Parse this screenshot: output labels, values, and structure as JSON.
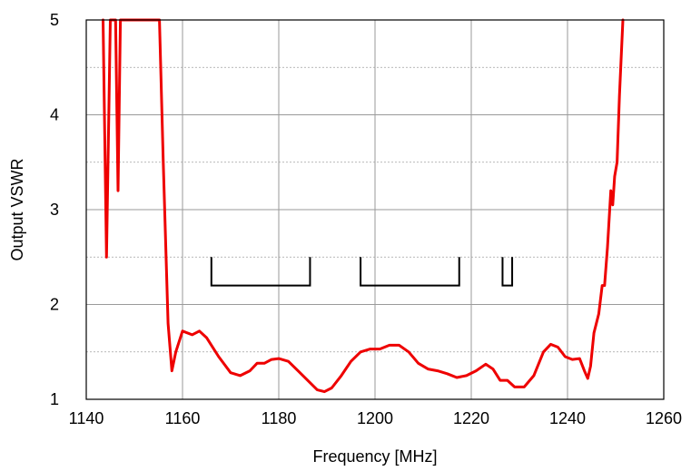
{
  "chart_data": {
    "type": "line",
    "title": "",
    "xlabel": "Frequency [MHz]",
    "ylabel": "Output VSWR",
    "xlim": [
      1140,
      1260
    ],
    "ylim": [
      1,
      5
    ],
    "x_ticks": [
      1140,
      1160,
      1180,
      1200,
      1220,
      1240,
      1260
    ],
    "y_ticks": [
      1,
      2,
      3,
      4,
      5
    ],
    "y_minor_grid": [
      1.5,
      2.5,
      3.5,
      4.5
    ],
    "grid": true,
    "line_color": "#ee0000",
    "series": [
      {
        "points": [
          [
            1143.5,
            5.0
          ],
          [
            1144.2,
            2.5
          ],
          [
            1145.0,
            5.0
          ],
          [
            1146.1,
            5.0
          ],
          [
            1146.6,
            3.2
          ],
          [
            1147.1,
            5.0
          ],
          [
            1155.2,
            5.0
          ],
          [
            1156.0,
            3.5
          ],
          [
            1157.0,
            1.8
          ],
          [
            1157.8,
            1.3
          ],
          [
            1158.6,
            1.5
          ],
          [
            1160.0,
            1.72
          ],
          [
            1162.0,
            1.68
          ],
          [
            1163.5,
            1.72
          ],
          [
            1165.0,
            1.65
          ],
          [
            1167.5,
            1.45
          ],
          [
            1170.0,
            1.28
          ],
          [
            1172.0,
            1.25
          ],
          [
            1174.0,
            1.3
          ],
          [
            1175.5,
            1.38
          ],
          [
            1177.0,
            1.38
          ],
          [
            1178.5,
            1.42
          ],
          [
            1180.0,
            1.43
          ],
          [
            1182.0,
            1.4
          ],
          [
            1184.0,
            1.3
          ],
          [
            1186.0,
            1.2
          ],
          [
            1188.0,
            1.1
          ],
          [
            1189.5,
            1.08
          ],
          [
            1191.0,
            1.12
          ],
          [
            1193.0,
            1.25
          ],
          [
            1195.0,
            1.4
          ],
          [
            1197.0,
            1.5
          ],
          [
            1199.0,
            1.53
          ],
          [
            1201.0,
            1.53
          ],
          [
            1203.0,
            1.57
          ],
          [
            1205.0,
            1.57
          ],
          [
            1207.0,
            1.5
          ],
          [
            1209.0,
            1.38
          ],
          [
            1211.0,
            1.32
          ],
          [
            1213.0,
            1.3
          ],
          [
            1215.0,
            1.27
          ],
          [
            1217.0,
            1.23
          ],
          [
            1219.0,
            1.25
          ],
          [
            1221.0,
            1.3
          ],
          [
            1223.0,
            1.37
          ],
          [
            1224.5,
            1.32
          ],
          [
            1226.0,
            1.2
          ],
          [
            1227.5,
            1.2
          ],
          [
            1229.0,
            1.13
          ],
          [
            1231.0,
            1.13
          ],
          [
            1233.0,
            1.25
          ],
          [
            1235.0,
            1.5
          ],
          [
            1236.5,
            1.58
          ],
          [
            1238.0,
            1.55
          ],
          [
            1239.5,
            1.45
          ],
          [
            1241.0,
            1.42
          ],
          [
            1242.5,
            1.43
          ],
          [
            1243.5,
            1.3
          ],
          [
            1244.2,
            1.22
          ],
          [
            1244.8,
            1.35
          ],
          [
            1245.5,
            1.7
          ],
          [
            1246.5,
            1.9
          ],
          [
            1247.2,
            2.2
          ],
          [
            1247.7,
            2.2
          ],
          [
            1248.3,
            2.6
          ],
          [
            1249.0,
            3.2
          ],
          [
            1249.4,
            3.05
          ],
          [
            1249.8,
            3.35
          ],
          [
            1250.3,
            3.5
          ],
          [
            1250.8,
            4.2
          ],
          [
            1251.5,
            5.0
          ]
        ]
      }
    ],
    "band_brackets": [
      {
        "x_start": 1166,
        "x_end": 1186.5,
        "y_top": 2.5,
        "y_bottom": 2.2
      },
      {
        "x_start": 1197,
        "x_end": 1217.5,
        "y_top": 2.5,
        "y_bottom": 2.2
      },
      {
        "x_start": 1226.5,
        "x_end": 1228.5,
        "y_top": 2.5,
        "y_bottom": 2.2
      }
    ]
  }
}
